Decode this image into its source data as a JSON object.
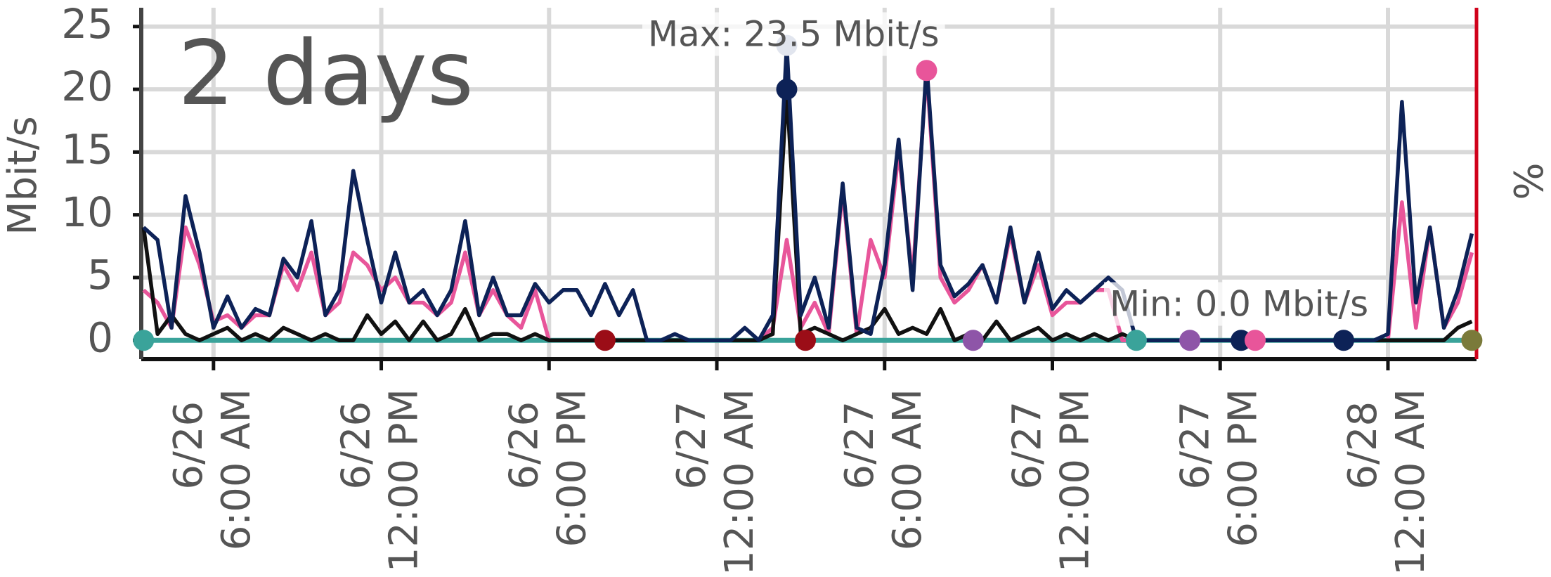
{
  "chart_data": {
    "type": "line",
    "title": "2 days",
    "ylabel": "Mbit/s",
    "y2label": "%",
    "annotations": [
      "Max: 23.5 Mbit/s",
      "Min: 0.0 Mbit/s"
    ],
    "x": [
      "6/26 3:30 AM",
      "6/26 4:00 AM",
      "6/26 4:30 AM",
      "6/26 5:00 AM",
      "6/26 5:30 AM",
      "6/26 6:00 AM",
      "6/26 6:30 AM",
      "6/26 7:00 AM",
      "6/26 7:30 AM",
      "6/26 8:00 AM",
      "6/26 8:30 AM",
      "6/26 9:00 AM",
      "6/26 9:30 AM",
      "6/26 10:00 AM",
      "6/26 10:30 AM",
      "6/26 11:00 AM",
      "6/26 11:30 AM",
      "6/26 12:00 PM",
      "6/26 12:30 PM",
      "6/26 1:00 PM",
      "6/26 1:30 PM",
      "6/26 2:00 PM",
      "6/26 2:30 PM",
      "6/26 3:00 PM",
      "6/26 3:30 PM",
      "6/26 4:00 PM",
      "6/26 4:30 PM",
      "6/26 5:00 PM",
      "6/26 5:30 PM",
      "6/26 6:00 PM",
      "6/26 6:30 PM",
      "6/26 7:00 PM",
      "6/26 7:30 PM",
      "6/26 8:00 PM",
      "6/26 8:30 PM",
      "6/26 9:00 PM",
      "6/26 9:30 PM",
      "6/26 10:00 PM",
      "6/26 10:30 PM",
      "6/26 11:00 PM",
      "6/26 11:30 PM",
      "6/27 12:00 AM",
      "6/27 12:30 AM",
      "6/27 1:00 AM",
      "6/27 1:30 AM",
      "6/27 2:00 AM",
      "6/27 2:30 AM",
      "6/27 3:00 AM",
      "6/27 3:30 AM",
      "6/27 4:00 AM",
      "6/27 4:30 AM",
      "6/27 5:00 AM",
      "6/27 5:30 AM",
      "6/27 6:00 AM",
      "6/27 6:30 AM",
      "6/27 7:00 AM",
      "6/27 7:30 AM",
      "6/27 8:00 AM",
      "6/27 8:30 AM",
      "6/27 9:00 AM",
      "6/27 9:30 AM",
      "6/27 10:00 AM",
      "6/27 10:30 AM",
      "6/27 11:00 AM",
      "6/27 11:30 AM",
      "6/27 12:00 PM",
      "6/27 12:30 PM",
      "6/27 1:00 PM",
      "6/27 1:30 PM",
      "6/27 2:00 PM",
      "6/27 2:30 PM",
      "6/27 3:00 PM",
      "6/27 3:30 PM",
      "6/27 4:00 PM",
      "6/27 4:30 PM",
      "6/27 5:00 PM",
      "6/27 5:30 PM",
      "6/27 6:00 PM",
      "6/27 6:30 PM",
      "6/27 7:00 PM",
      "6/27 7:30 PM",
      "6/27 8:00 PM",
      "6/27 8:30 PM",
      "6/27 9:00 PM",
      "6/27 9:30 PM",
      "6/27 10:00 PM",
      "6/27 10:30 PM",
      "6/27 11:00 PM",
      "6/27 11:30 PM",
      "6/28 12:00 AM",
      "6/28 12:30 AM",
      "6/28 1:00 AM",
      "6/28 1:30 AM",
      "6/28 2:00 AM",
      "6/28 2:30 AM",
      "6/28 3:00 AM"
    ],
    "series": [
      {
        "color": "#3aa39a",
        "values": [
          0,
          0,
          0,
          0,
          0,
          0,
          0,
          0,
          0,
          0,
          0,
          0,
          0,
          0,
          0,
          0,
          0,
          0,
          0,
          0,
          0,
          0,
          0,
          0,
          0,
          0,
          0,
          0,
          0,
          0,
          0,
          0,
          0,
          0,
          0,
          0,
          0,
          0,
          0,
          0,
          0,
          0,
          0,
          0,
          0,
          0,
          0,
          0,
          0,
          0,
          0,
          0,
          0,
          0,
          0,
          0,
          0,
          0,
          0,
          0,
          0,
          0,
          0,
          0,
          0,
          0,
          0,
          0,
          0,
          0,
          0,
          0,
          0,
          0,
          0,
          0,
          0,
          0,
          0,
          0,
          0,
          0,
          0,
          0,
          0,
          0,
          0,
          0,
          0,
          0,
          0,
          0,
          0,
          0,
          0,
          0
        ]
      },
      {
        "color": "#e8559a",
        "values": [
          4,
          3,
          1,
          9,
          6,
          1.5,
          2,
          1,
          2,
          2,
          6,
          4,
          7,
          2,
          3,
          7,
          6,
          4,
          5,
          3,
          3,
          2,
          3,
          7,
          2,
          4,
          2,
          1,
          4,
          0,
          0,
          0,
          0,
          0,
          0,
          0,
          0,
          0,
          0,
          0,
          0,
          0,
          0,
          0,
          0,
          1,
          8,
          1,
          3,
          0.5,
          12,
          0.5,
          8,
          5,
          15,
          5,
          21.5,
          5,
          3,
          4,
          6,
          3,
          8.5,
          3,
          6,
          2,
          3,
          3,
          4,
          4,
          0,
          0,
          0,
          0,
          0,
          0,
          0,
          0,
          0,
          0,
          0,
          0,
          0,
          0,
          0,
          0,
          0,
          0,
          0,
          0,
          11,
          1,
          9,
          1,
          3,
          7
        ]
      },
      {
        "color": "#111111",
        "values": [
          9,
          0.5,
          2,
          0.5,
          0,
          0.5,
          1,
          0,
          0.5,
          0,
          1,
          0.5,
          0,
          0.5,
          0,
          0,
          2,
          0.5,
          1.5,
          0,
          1.5,
          0,
          0.5,
          2.5,
          0,
          0.5,
          0.5,
          0,
          0.5,
          0,
          0,
          0,
          0,
          0,
          0,
          0,
          0,
          0,
          0,
          0,
          0,
          0,
          0,
          0,
          0,
          0.5,
          20,
          0.5,
          1,
          0.5,
          0,
          0.5,
          1,
          2.5,
          0.5,
          1,
          0.5,
          2.5,
          0,
          0.5,
          0,
          1.5,
          0,
          0.5,
          1,
          0,
          0.5,
          0,
          0.5,
          0,
          0.5,
          0,
          0,
          0,
          0,
          0,
          0,
          0,
          0,
          0,
          0,
          0,
          0,
          0,
          0,
          0,
          0,
          0,
          0,
          0,
          0,
          0,
          0,
          0,
          1,
          1.5
        ]
      },
      {
        "color": "#0d2257",
        "values": [
          9,
          8,
          1,
          11.5,
          7,
          1,
          3.5,
          1,
          2.5,
          2,
          6.5,
          5,
          9.5,
          2,
          4,
          13.5,
          8,
          3,
          7,
          3,
          4,
          2,
          4,
          9.5,
          2,
          5,
          2,
          2,
          4.5,
          3,
          4,
          4,
          2,
          4.5,
          2,
          4,
          0,
          0,
          0.5,
          0,
          0,
          0,
          0,
          1,
          0,
          2,
          23.5,
          2,
          5,
          1,
          12.5,
          1,
          0.5,
          6,
          16,
          4,
          22,
          6,
          3.5,
          4.5,
          6,
          3,
          9,
          3,
          7,
          2.5,
          4,
          3,
          4,
          5,
          4,
          0,
          0,
          0,
          0,
          0,
          0,
          0,
          0,
          0,
          0,
          0,
          0,
          0,
          0,
          0,
          0,
          0,
          0,
          0.5,
          19,
          3,
          9,
          1,
          4,
          8.5
        ]
      }
    ],
    "markers": [
      {
        "x": "6/26 3:30 AM",
        "y": 0,
        "color": "#3aa39a"
      },
      {
        "x": "6/26 8:00 PM",
        "y": 0,
        "color": "#9b0d17"
      },
      {
        "x": "6/27 3:10 AM",
        "y": 0,
        "color": "#9b0d17"
      },
      {
        "x": "6/27 9:10 AM",
        "y": 0,
        "color": "#8e55a8"
      },
      {
        "x": "6/27 3:00 PM",
        "y": 0,
        "color": "#3aa39a"
      },
      {
        "x": "6/27 4:55 PM",
        "y": 0,
        "color": "#8e55a8"
      },
      {
        "x": "6/27 6:45 PM",
        "y": 0,
        "color": "#0d2257"
      },
      {
        "x": "6/27 7:15 PM",
        "y": 0,
        "color": "#e8559a"
      },
      {
        "x": "6/27 10:25 PM",
        "y": 0,
        "color": "#0d2257"
      },
      {
        "x": "6/28 3:00 AM",
        "y": 0,
        "color": "#7a7a3a"
      },
      {
        "x": "6/27 2:30 AM",
        "y": 23.5,
        "color": "#8796bd"
      },
      {
        "x": "6/27 2:30 AM",
        "y": 20,
        "color": "#0d2257"
      },
      {
        "x": "6/27 7:30 AM",
        "y": 21.5,
        "color": "#e8559a"
      }
    ],
    "xlim": [
      "6/26 3:25 AM",
      "6/28 3:10 AM"
    ],
    "xticks": [
      "6/26 6:00 AM",
      "6/26 12:00 PM",
      "6/26 6:00 PM",
      "6/27 12:00 AM",
      "6/27 6:00 AM",
      "6/27 12:00 PM",
      "6/27 6:00 PM",
      "6/28 12:00 AM"
    ],
    "ylim": [
      -1.5,
      26.5
    ],
    "yticks": [
      0,
      5,
      10,
      15,
      20,
      25
    ],
    "grid": true
  }
}
